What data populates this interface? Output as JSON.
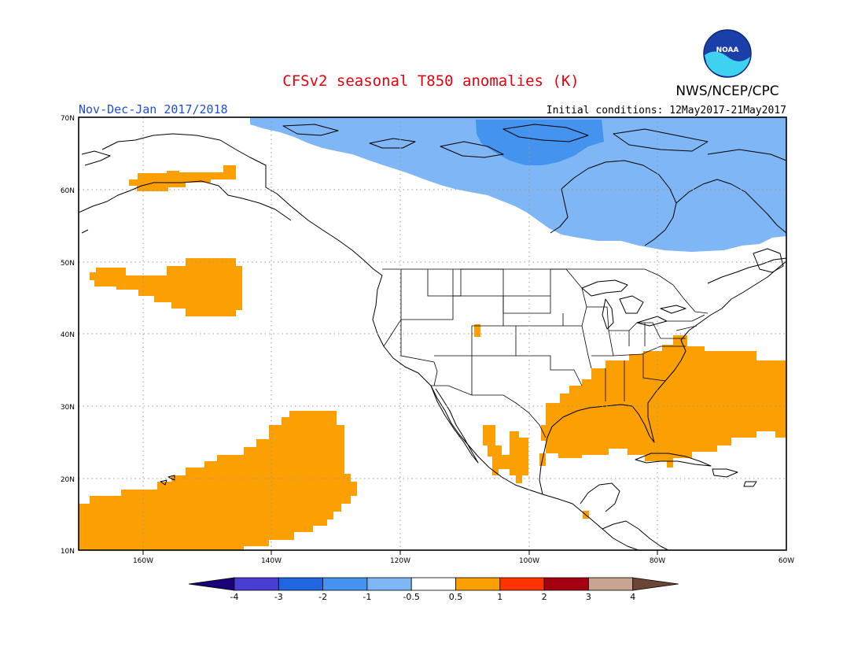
{
  "header": {
    "title": "CFSv2 seasonal T850 anomalies (K)",
    "org": "NWS/NCEP/CPC",
    "period": "Nov-Dec-Jan 2017/2018",
    "initial_conditions": "Initial conditions: 12May2017-21May2017",
    "logo_text": "NOAA"
  },
  "map": {
    "lat_range": [
      10,
      70
    ],
    "lon_range": [
      -170,
      -60
    ],
    "lat_labels": [
      "70N",
      "60N",
      "50N",
      "40N",
      "30N",
      "20N",
      "10N"
    ],
    "lon_labels": [
      "160W",
      "140W",
      "120W",
      "100W",
      "80W",
      "60W"
    ],
    "anomaly_regions": [
      {
        "name": "Canada / Hudson Bay cold anomaly",
        "category": "-1 to -0.5",
        "color": "#7fb6f5"
      },
      {
        "name": "Canadian Arctic core cold anomaly",
        "category": "-2 to -1",
        "color": "#4393ef"
      },
      {
        "name": "Southeast US / Gulf / W Atlantic warm anomaly",
        "category": "0.5 to 1",
        "color": "#fba000"
      },
      {
        "name": "Central subtropical Pacific warm anomaly",
        "category": "0.5 to 1",
        "color": "#fba000"
      },
      {
        "name": "NE Pacific warm anomaly",
        "category": "0.5 to 1",
        "color": "#fba000"
      },
      {
        "name": "Gulf of Alaska warm anomaly",
        "category": "0.5 to 1",
        "color": "#fba000"
      },
      {
        "name": "Mexico warm anomaly",
        "category": "0.5 to 1",
        "color": "#fba000"
      }
    ]
  },
  "colorbar": {
    "labels": [
      "-4",
      "-3",
      "-2",
      "-1",
      "-0.5",
      "0.5",
      "1",
      "2",
      "3",
      "4"
    ],
    "colors": [
      "#1c007a",
      "#4a3dd4",
      "#1f66e0",
      "#4393ef",
      "#7fb6f5",
      "#ffffff",
      "#fba000",
      "#ff3300",
      "#a50010",
      "#c9a491",
      "#6b4535"
    ]
  }
}
